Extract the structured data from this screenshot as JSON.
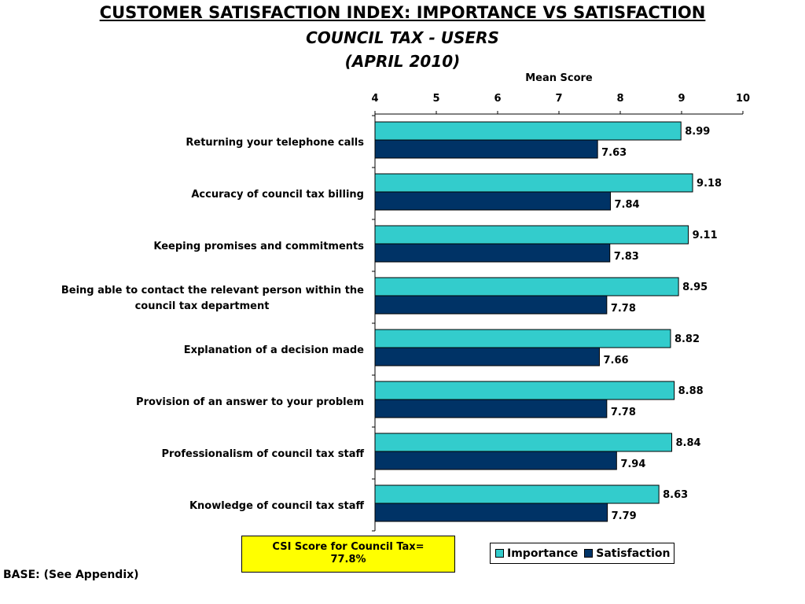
{
  "title": "CUSTOMER SATISFACTION INDEX: IMPORTANCE VS SATISFACTION",
  "subtitle_line1": "COUNCIL TAX - USERS",
  "subtitle_line2": "(APRIL 2010)",
  "csi_box": {
    "line1": "CSI Score for Council Tax=",
    "line2": "77.8%",
    "color": "#ffff00"
  },
  "base_note": "BASE: (See Appendix)",
  "chart_data": {
    "type": "bar",
    "orientation": "horizontal",
    "xlabel": "Mean Score",
    "xlim": [
      4,
      10
    ],
    "xticks": [
      "4",
      "5",
      "6",
      "7",
      "8",
      "9",
      "10"
    ],
    "axis_position": "top",
    "grid": false,
    "legend_position": "bottom-right",
    "categories": [
      "Returning your telephone calls",
      "Accuracy of council tax billing",
      "Keeping promises and commitments",
      "Being able to contact the relevant person within the council tax department",
      "Explanation of a decision made",
      "Provision of an answer to your problem",
      "Professionalism of council tax staff",
      "Knowledge of council tax staff"
    ],
    "category_lines": [
      [
        "Returning your telephone calls"
      ],
      [
        "Accuracy of council tax billing"
      ],
      [
        "Keeping promises and commitments"
      ],
      [
        "Being able to contact the relevant person within the",
        "council tax department"
      ],
      [
        "Explanation of a decision made"
      ],
      [
        "Provision of an answer to your problem"
      ],
      [
        "Professionalism of council tax staff"
      ],
      [
        "Knowledge of council tax staff"
      ]
    ],
    "series": [
      {
        "name": "Importance",
        "color": "#33cccc",
        "values": [
          8.99,
          9.18,
          9.11,
          8.95,
          8.82,
          8.88,
          8.84,
          8.63
        ],
        "labels": [
          "8.99",
          "9.18",
          "9.11",
          "8.95",
          "8.82",
          "8.88",
          "8.84",
          "8.63"
        ]
      },
      {
        "name": "Satisfaction",
        "color": "#003366",
        "values": [
          7.63,
          7.84,
          7.83,
          7.78,
          7.66,
          7.78,
          7.94,
          7.79
        ],
        "labels": [
          "7.63",
          "7.84",
          "7.83",
          "7.78",
          "7.66",
          "7.78",
          "7.94",
          "7.79"
        ]
      }
    ]
  }
}
